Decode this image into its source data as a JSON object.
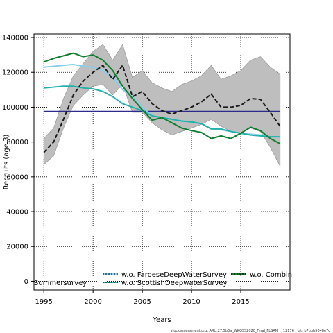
{
  "chart_data": {
    "type": "line",
    "xlabel": "Years",
    "ylabel": "Recruits (age 3)",
    "xlim": [
      1994,
      2020
    ],
    "ylim": [
      -5000,
      142000
    ],
    "xticks": [
      1995,
      2000,
      2005,
      2010,
      2015
    ],
    "yticks": [
      0,
      20000,
      40000,
      60000,
      80000,
      100000,
      120000,
      140000
    ],
    "ytick_labels": [
      "0",
      "20000",
      "40000",
      "60000",
      "80000",
      "100000",
      "120000",
      "140000"
    ],
    "grid": true,
    "legend_placement": "bottom",
    "x": [
      1995,
      1996,
      1997,
      1998,
      1999,
      2000,
      2001,
      2002,
      2003,
      2004,
      2005,
      2006,
      2007,
      2008,
      2009,
      2010,
      2011,
      2012,
      2013,
      2014,
      2015,
      2016,
      2017,
      2018,
      2019
    ],
    "band": {
      "color": "#bebebe",
      "lower": [
        67000,
        72000,
        88000,
        101000,
        107000,
        112000,
        113000,
        107000,
        113000,
        97000,
        97000,
        91000,
        87000,
        84000,
        86000,
        88000,
        90000,
        93000,
        89000,
        86000,
        85000,
        88000,
        86000,
        77000,
        66000
      ],
      "upper": [
        82000,
        88000,
        105000,
        118000,
        125000,
        132000,
        136000,
        127000,
        136000,
        117000,
        121000,
        114000,
        111000,
        109000,
        113000,
        115000,
        118000,
        124000,
        116000,
        118000,
        121000,
        127000,
        129000,
        123000,
        119000
      ]
    },
    "series": [
      {
        "name": "",
        "color": "#1a1a1a",
        "dash": "dashed",
        "values": [
          74000,
          80000,
          93000,
          107000,
          115000,
          120000,
          124000,
          116000,
          124000,
          106000,
          109000,
          102000,
          98000,
          96000,
          98000,
          100000,
          103000,
          107500,
          100000,
          100000,
          101000,
          105000,
          104500,
          97000,
          89000
        ]
      },
      {
        "name": "w.o. FaroeseDeepWaterSurvey",
        "color": "#87ceeb",
        "dash": "solid",
        "values": [
          123000,
          123500,
          124000,
          124500,
          123500,
          123000,
          121000,
          117000,
          110000,
          106000,
          100000,
          95000,
          94000,
          93000,
          92000,
          91500,
          90500,
          87500,
          87000,
          86000,
          85000,
          84500,
          84000,
          83000,
          83000
        ]
      },
      {
        "name": "w.o. ScottishDeepwaterSurvey",
        "color": "#20b2aa",
        "dash": "solid",
        "values": [
          111000,
          111500,
          112000,
          112000,
          111000,
          110500,
          109000,
          106000,
          102000,
          100000,
          98000,
          95000,
          94000,
          93000,
          92000,
          91500,
          90500,
          87500,
          87500,
          86000,
          85000,
          84000,
          83500,
          83000,
          83000
        ]
      },
      {
        "name": "w.o. Combin",
        "color": "#0f7f2f",
        "dash": "solid",
        "values": [
          126000,
          128000,
          129500,
          131000,
          129000,
          130000,
          127000,
          121000,
          112000,
          105000,
          98500,
          92500,
          94000,
          91000,
          88000,
          86500,
          85500,
          82000,
          83500,
          82000,
          85000,
          88500,
          86500,
          82000,
          79000
        ]
      },
      {
        "name": "",
        "color": "#2e2a8c",
        "dash": "solid",
        "values": [
          97500,
          97500,
          97500,
          97500,
          97500,
          97500,
          97500,
          97500,
          97500,
          97500,
          97500,
          97500,
          97500,
          97500,
          97500,
          97500,
          97500,
          97500,
          97500,
          97500,
          97500,
          97500,
          97500,
          97500,
          97500
        ]
      }
    ],
    "legend_extra_text": "Summersurvey",
    "footer": "stockassessment.org, ARU.27.5b6a_WKGSS2020_Final_FLSAM , r12176 , git: b7bbb5048e7c"
  }
}
